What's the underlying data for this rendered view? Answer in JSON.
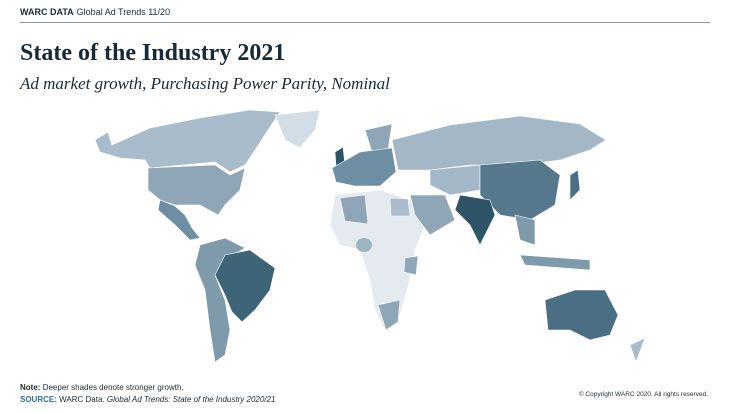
{
  "header": {
    "brand": "WARC DATA",
    "publication": "Global Ad Trends 11/20"
  },
  "title": "State of the Industry 2021",
  "subtitle": "Ad market growth, Purchasing Power Parity, Nominal",
  "footer": {
    "note_label": "Note:",
    "note_text": "Deeper shades denote stronger growth.",
    "source_label": "SOURCE:",
    "source_text": "WARC Data.",
    "source_title": "Global Ad Trends: State of the Industry 2020/21"
  },
  "copyright": "© Copyright WARC 2020. All rights reserved."
}
